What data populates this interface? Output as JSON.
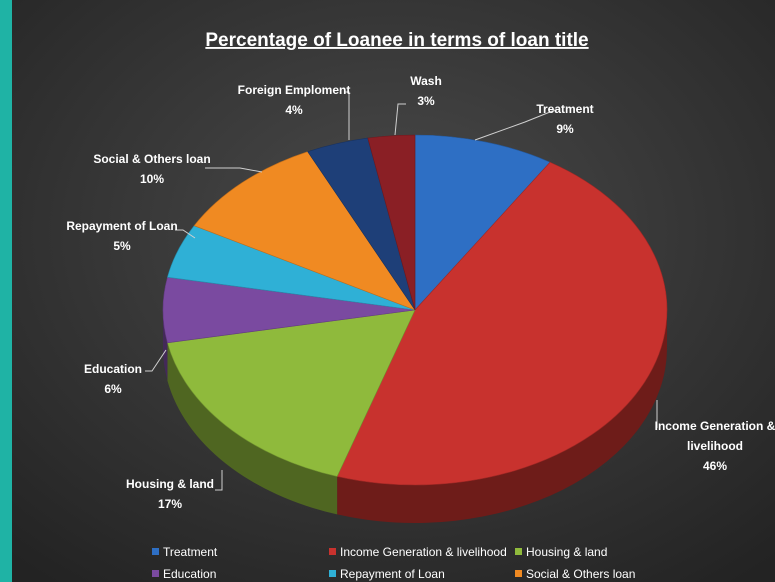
{
  "chart_data": {
    "type": "pie",
    "title": "Percentage of Loanee in terms of loan title",
    "style": "3d",
    "legend_position": "bottom",
    "slices": [
      {
        "name": "Treatment",
        "value": 9,
        "label": "9%",
        "color": "#2e6fc4"
      },
      {
        "name": "Income Generation & livelihood",
        "value": 46,
        "label": "46%",
        "color": "#c8322e"
      },
      {
        "name": "Housing & land",
        "value": 17,
        "label": "17%",
        "color": "#8fba3c"
      },
      {
        "name": "Education",
        "value": 6,
        "label": "6%",
        "color": "#7a4aa0"
      },
      {
        "name": "Repayment of Loan",
        "value": 5,
        "label": "5%",
        "color": "#2fb0d6"
      },
      {
        "name": "Social & Others loan",
        "value": 10,
        "label": "10%",
        "color": "#f08a22"
      },
      {
        "name": "Foreign Emploment",
        "value": 4,
        "label": "4%",
        "color": "#1e3f78"
      },
      {
        "name": "Wash",
        "value": 3,
        "label": "3%",
        "color": "#8a1f25"
      }
    ],
    "slice_label_lines": [
      [
        "Treatment",
        "9%"
      ],
      [
        "Income Generation &",
        "livelihood",
        "46%"
      ],
      [
        "Housing & land",
        "17%"
      ],
      [
        "Education",
        "6%"
      ],
      [
        "Repayment of Loan",
        "5%"
      ],
      [
        "Social & Others loan",
        "10%"
      ],
      [
        "Foreign Emploment",
        "4%"
      ],
      [
        "Wash",
        "3%"
      ]
    ],
    "legend_entries": [
      "Treatment",
      "Income Generation & livelihood",
      "Housing & land",
      "Education",
      "Repayment of Loan",
      "Social & Others loan"
    ]
  }
}
